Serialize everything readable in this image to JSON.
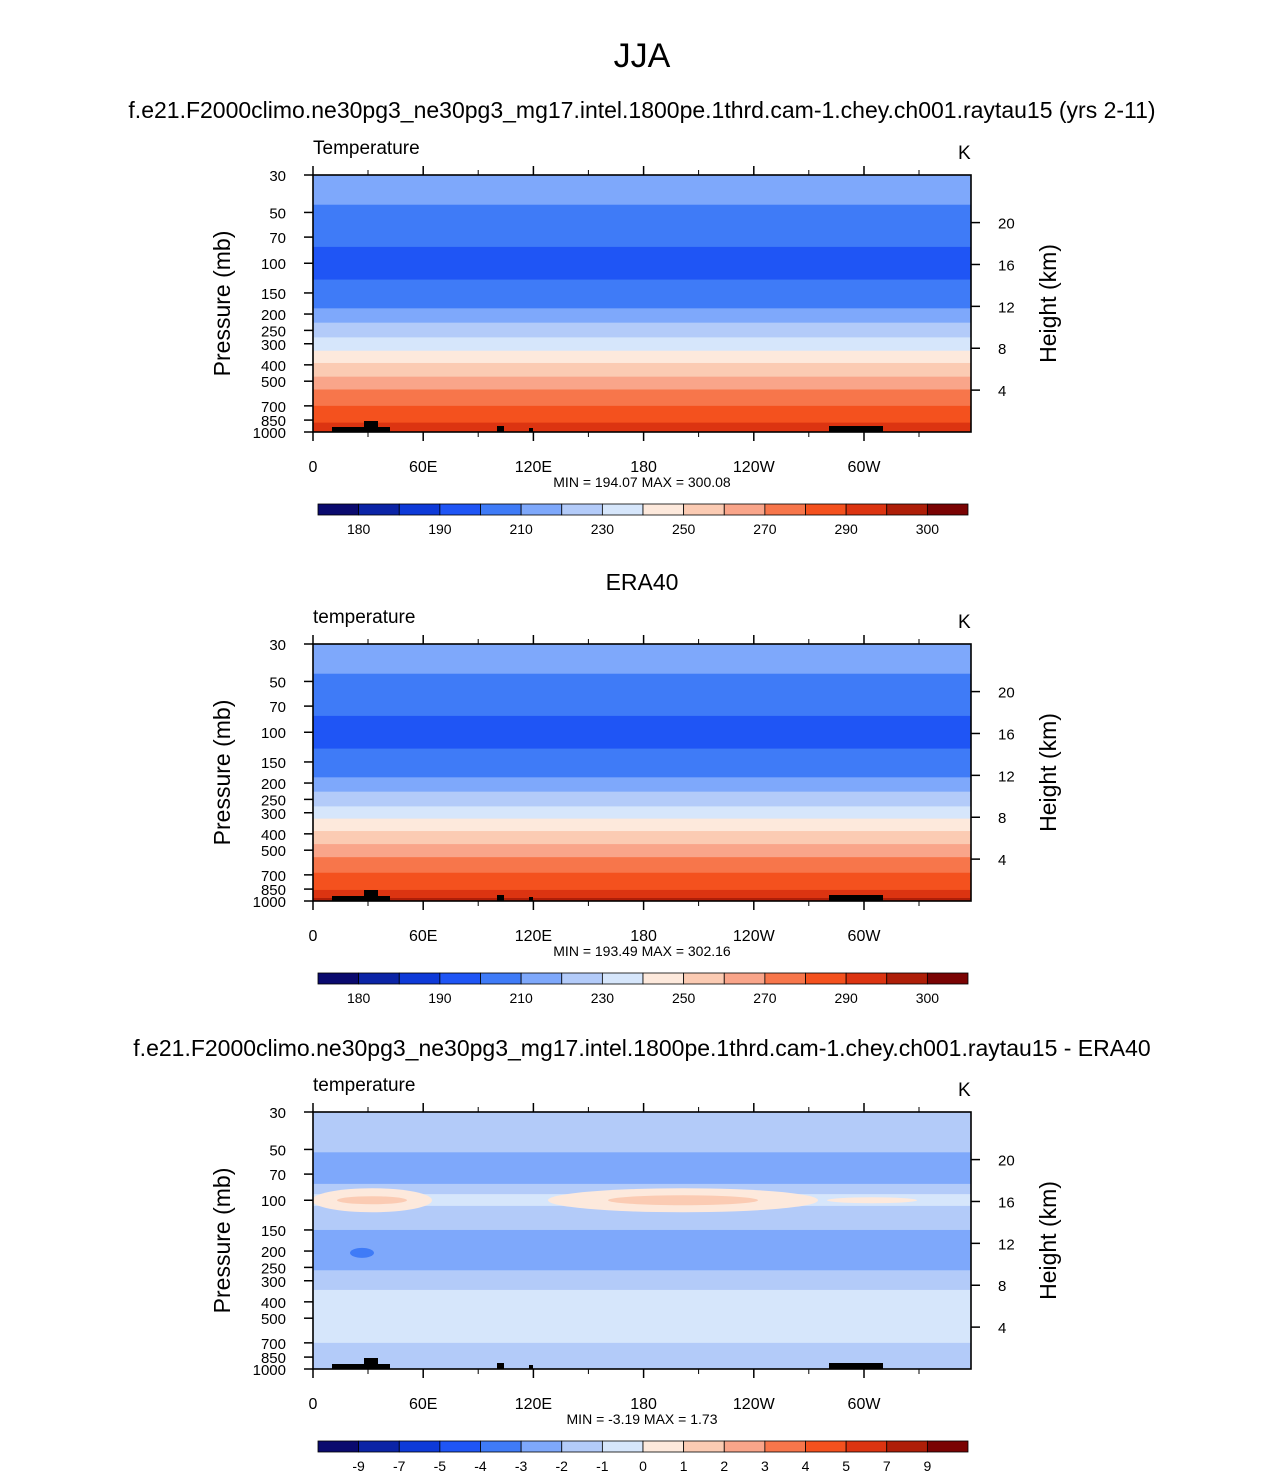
{
  "main_title": "JJA",
  "colors": {
    "temp_levels": [
      "#0a0a6e",
      "#0b24a6",
      "#0e3ad8",
      "#1f55f5",
      "#3f7bf7",
      "#7ea8fb",
      "#b3cbf9",
      "#d6e6fb",
      "#fde9dc",
      "#fbcbb3",
      "#f9a58a",
      "#f7764b",
      "#f4511e",
      "#dc3411",
      "#ae1e08",
      "#7a0303"
    ],
    "diff_levels": [
      "#0a0a6e",
      "#0b24a6",
      "#0e3ad8",
      "#1f55f5",
      "#3f7bf7",
      "#7ea8fb",
      "#b3cbf9",
      "#d6e6fb",
      "#fde9dc",
      "#fbcbb3",
      "#f9a58a",
      "#f7764b",
      "#f4511e",
      "#dc3411",
      "#ae1e08",
      "#7a0303"
    ],
    "topography": "#000000"
  },
  "chart_data": [
    {
      "type": "heatmap",
      "title": "f.e21.F2000climo.ne30pg3_ne30pg3_mg17.intel.1800pe.1thrd.cam-1.chey.ch001.raytau15 (yrs 2-11)",
      "left_label": "Temperature",
      "units": "K",
      "ylabel": "Pressure (mb)",
      "ylabel_right": "Height (km)",
      "xlabel": "",
      "x_ticks": [
        "0",
        "60E",
        "120E",
        "180",
        "120W",
        "60W"
      ],
      "y_ticks": [
        "30",
        "50",
        "70",
        "100",
        "150",
        "200",
        "250",
        "300",
        "400",
        "500",
        "700",
        "850",
        "1000"
      ],
      "y_ticks_right": [
        "20",
        "16",
        "12",
        "8",
        "4"
      ],
      "stats": "MIN = 194.07  MAX = 300.08",
      "colorbar_labels": [
        "180",
        "190",
        "210",
        "230",
        "250",
        "270",
        "290",
        "300"
      ],
      "bands": [
        {
          "p": 30,
          "level": 5
        },
        {
          "p": 45,
          "level": 4
        },
        {
          "p": 80,
          "level": 3
        },
        {
          "p": 125,
          "level": 4
        },
        {
          "p": 185,
          "level": 5
        },
        {
          "p": 225,
          "level": 6
        },
        {
          "p": 275,
          "level": 7
        },
        {
          "p": 330,
          "level": 8
        },
        {
          "p": 390,
          "level": 9
        },
        {
          "p": 470,
          "level": 10
        },
        {
          "p": 560,
          "level": 11
        },
        {
          "p": 700,
          "level": 12
        },
        {
          "p": 880,
          "level": 13
        }
      ]
    },
    {
      "type": "heatmap",
      "title": "ERA40",
      "left_label": "temperature",
      "units": "K",
      "ylabel": "Pressure (mb)",
      "ylabel_right": "Height (km)",
      "xlabel": "",
      "x_ticks": [
        "0",
        "60E",
        "120E",
        "180",
        "120W",
        "60W"
      ],
      "y_ticks": [
        "30",
        "50",
        "70",
        "100",
        "150",
        "200",
        "250",
        "300",
        "400",
        "500",
        "700",
        "850",
        "1000"
      ],
      "y_ticks_right": [
        "20",
        "16",
        "12",
        "8",
        "4"
      ],
      "stats": "MIN = 193.49  MAX = 302.16",
      "colorbar_labels": [
        "180",
        "190",
        "210",
        "230",
        "250",
        "270",
        "290",
        "300"
      ],
      "bands": [
        {
          "p": 30,
          "level": 5
        },
        {
          "p": 45,
          "level": 4
        },
        {
          "p": 80,
          "level": 3
        },
        {
          "p": 125,
          "level": 4
        },
        {
          "p": 185,
          "level": 5
        },
        {
          "p": 225,
          "level": 6
        },
        {
          "p": 275,
          "level": 7
        },
        {
          "p": 325,
          "level": 8
        },
        {
          "p": 385,
          "level": 9
        },
        {
          "p": 460,
          "level": 10
        },
        {
          "p": 550,
          "level": 11
        },
        {
          "p": 680,
          "level": 12
        },
        {
          "p": 860,
          "level": 13
        },
        {
          "p": 960,
          "level": 14
        }
      ]
    },
    {
      "type": "heatmap",
      "title": "f.e21.F2000climo.ne30pg3_ne30pg3_mg17.intel.1800pe.1thrd.cam-1.chey.ch001.raytau15 - ERA40",
      "left_label": "temperature",
      "units": "K",
      "ylabel": "Pressure (mb)",
      "ylabel_right": "Height (km)",
      "xlabel": "",
      "x_ticks": [
        "0",
        "60E",
        "120E",
        "180",
        "120W",
        "60W"
      ],
      "y_ticks": [
        "30",
        "50",
        "70",
        "100",
        "150",
        "200",
        "250",
        "300",
        "400",
        "500",
        "700",
        "850",
        "1000"
      ],
      "y_ticks_right": [
        "20",
        "16",
        "12",
        "8",
        "4"
      ],
      "stats": "MIN =  -3.19  MAX =   1.73",
      "colorbar_labels": [
        "-9",
        "-7",
        "-5",
        "-4",
        "-3",
        "-2",
        "-1",
        "0",
        "1",
        "2",
        "3",
        "4",
        "5",
        "7",
        "9"
      ],
      "bands": [
        {
          "p": 30,
          "level": 6
        },
        {
          "p": 52,
          "level": 5
        },
        {
          "p": 80,
          "level": 6
        },
        {
          "p": 92,
          "level": 7
        },
        {
          "p": 108,
          "level": 6
        },
        {
          "p": 150,
          "level": 5
        },
        {
          "p": 260,
          "level": 6
        },
        {
          "p": 340,
          "level": 7
        },
        {
          "p": 700,
          "level": 6
        }
      ]
    }
  ]
}
